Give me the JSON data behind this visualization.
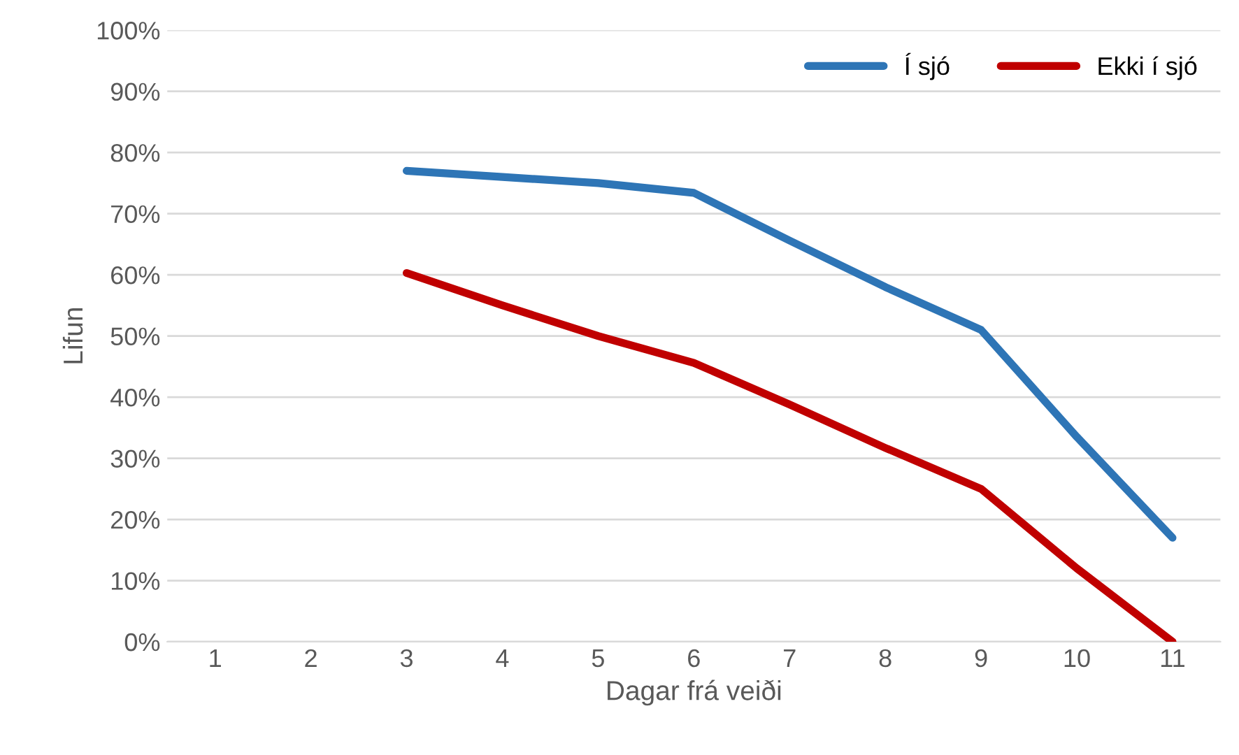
{
  "chart_data": {
    "type": "line",
    "xlabel": "Dagar frá veiði",
    "ylabel": "Lifun",
    "categories": [
      "1",
      "2",
      "3",
      "4",
      "5",
      "6",
      "7",
      "8",
      "9",
      "10",
      "11"
    ],
    "series": [
      {
        "name": "Í sjó",
        "color": "#2e75b6",
        "values": [
          null,
          null,
          77,
          76,
          75,
          73.4,
          65.6,
          58,
          51,
          33.5,
          17
        ]
      },
      {
        "name": "Ekki í sjó",
        "color": "#c00000",
        "values": [
          null,
          null,
          60.3,
          55,
          50,
          45.6,
          38.8,
          31.7,
          25,
          12,
          0
        ]
      }
    ],
    "ylim": [
      0,
      100
    ],
    "yticks": [
      {
        "value": 0,
        "label": "0%"
      },
      {
        "value": 10,
        "label": "10%"
      },
      {
        "value": 20,
        "label": "20%"
      },
      {
        "value": 30,
        "label": "30%"
      },
      {
        "value": 40,
        "label": "40%"
      },
      {
        "value": 50,
        "label": "50%"
      },
      {
        "value": 60,
        "label": "60%"
      },
      {
        "value": 70,
        "label": "70%"
      },
      {
        "value": 80,
        "label": "80%"
      },
      {
        "value": 90,
        "label": "90%"
      },
      {
        "value": 100,
        "label": "100%"
      }
    ],
    "grid": "y",
    "legend": "top right",
    "marker": "none",
    "line_style": "solid"
  }
}
